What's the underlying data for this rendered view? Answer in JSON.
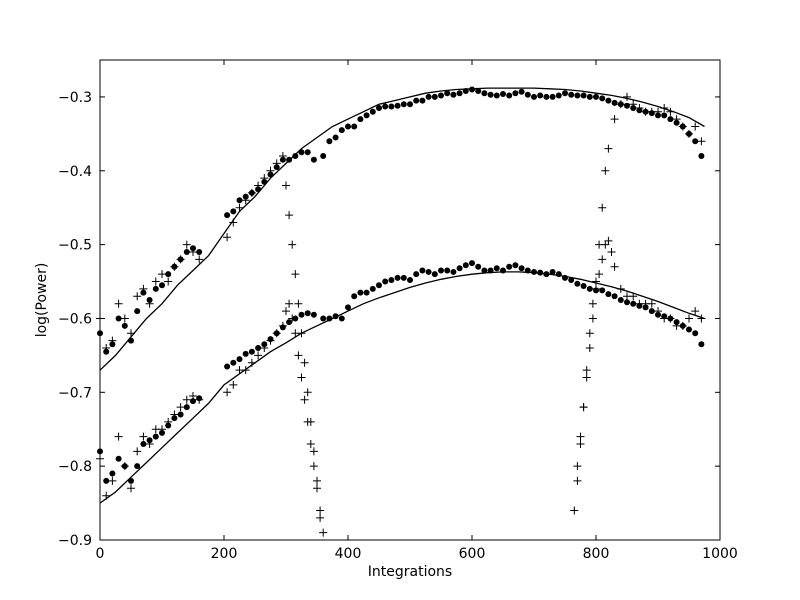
{
  "chart_data": {
    "type": "scatter",
    "title": "",
    "xlabel": "Integrations",
    "ylabel": "log(Power)",
    "xlim": [
      0,
      1000
    ],
    "ylim": [
      -0.9,
      -0.25
    ],
    "xticks": [
      0,
      200,
      400,
      600,
      800,
      1000
    ],
    "xtick_labels": [
      "0",
      "200",
      "400",
      "600",
      "800",
      "1000"
    ],
    "yticks": [
      -0.9,
      -0.8,
      -0.7,
      -0.6,
      -0.5,
      -0.4,
      -0.3
    ],
    "ytick_labels": [
      "−0.9",
      "−0.8",
      "−0.7",
      "−0.6",
      "−0.5",
      "−0.4",
      "−0.3"
    ],
    "grid": false,
    "legend": false,
    "colors": {
      "marks": "#000000",
      "background": "#ffffff"
    },
    "series": [
      {
        "marker": "line",
        "x": [
          0,
          25,
          50,
          75,
          100,
          125,
          150,
          175,
          200,
          225,
          250,
          275,
          300,
          325,
          350,
          375,
          400,
          425,
          450,
          475,
          500,
          525,
          550,
          575,
          600,
          625,
          650,
          675,
          700,
          725,
          750,
          775,
          800,
          825,
          850,
          875,
          900,
          925,
          950,
          975
        ],
        "y": [
          -0.67,
          -0.65,
          -0.625,
          -0.6,
          -0.58,
          -0.555,
          -0.535,
          -0.515,
          -0.485,
          -0.455,
          -0.435,
          -0.41,
          -0.39,
          -0.37,
          -0.355,
          -0.34,
          -0.33,
          -0.32,
          -0.31,
          -0.305,
          -0.3,
          -0.295,
          -0.292,
          -0.29,
          -0.289,
          -0.288,
          -0.288,
          -0.288,
          -0.288,
          -0.289,
          -0.29,
          -0.292,
          -0.295,
          -0.298,
          -0.302,
          -0.307,
          -0.313,
          -0.32,
          -0.328,
          -0.34
        ]
      },
      {
        "marker": "line",
        "x": [
          0,
          25,
          50,
          75,
          100,
          125,
          150,
          175,
          200,
          225,
          250,
          275,
          300,
          325,
          350,
          375,
          400,
          425,
          450,
          475,
          500,
          525,
          550,
          575,
          600,
          625,
          650,
          675,
          700,
          725,
          750,
          775,
          800,
          825,
          850,
          875,
          900,
          925,
          950,
          975
        ],
        "y": [
          -0.85,
          -0.835,
          -0.815,
          -0.795,
          -0.775,
          -0.755,
          -0.735,
          -0.715,
          -0.69,
          -0.675,
          -0.66,
          -0.645,
          -0.633,
          -0.62,
          -0.61,
          -0.6,
          -0.59,
          -0.58,
          -0.572,
          -0.565,
          -0.558,
          -0.552,
          -0.547,
          -0.543,
          -0.54,
          -0.538,
          -0.537,
          -0.537,
          -0.538,
          -0.54,
          -0.543,
          -0.547,
          -0.552,
          -0.557,
          -0.563,
          -0.57,
          -0.577,
          -0.585,
          -0.593,
          -0.6
        ]
      },
      {
        "marker": "dot",
        "x": [
          0,
          10,
          20,
          30,
          40,
          50,
          60,
          70,
          80,
          90,
          100,
          110,
          120,
          130,
          140,
          150,
          160,
          205,
          215,
          225,
          235,
          245,
          255,
          265,
          275,
          285,
          295,
          305,
          315,
          325,
          335,
          345,
          360,
          370,
          380,
          390,
          400,
          410,
          420,
          430,
          440,
          450,
          460,
          470,
          480,
          490,
          500,
          510,
          520,
          530,
          540,
          550,
          560,
          570,
          580,
          590,
          600,
          610,
          620,
          630,
          640,
          650,
          660,
          670,
          680,
          690,
          700,
          710,
          720,
          730,
          740,
          750,
          760,
          770,
          780,
          790,
          800,
          810,
          820,
          830,
          840,
          850,
          860,
          870,
          880,
          890,
          900,
          910,
          920,
          930,
          940,
          950,
          960,
          970
        ],
        "y": [
          -0.62,
          -0.645,
          -0.635,
          -0.6,
          -0.61,
          -0.63,
          -0.59,
          -0.565,
          -0.575,
          -0.56,
          -0.555,
          -0.54,
          -0.53,
          -0.52,
          -0.51,
          -0.505,
          -0.51,
          -0.46,
          -0.455,
          -0.44,
          -0.435,
          -0.43,
          -0.425,
          -0.415,
          -0.405,
          -0.395,
          -0.385,
          -0.385,
          -0.38,
          -0.375,
          -0.375,
          -0.385,
          -0.38,
          -0.36,
          -0.355,
          -0.345,
          -0.34,
          -0.34,
          -0.33,
          -0.325,
          -0.32,
          -0.315,
          -0.313,
          -0.313,
          -0.312,
          -0.31,
          -0.31,
          -0.305,
          -0.305,
          -0.3,
          -0.3,
          -0.298,
          -0.295,
          -0.297,
          -0.295,
          -0.292,
          -0.29,
          -0.292,
          -0.295,
          -0.297,
          -0.298,
          -0.296,
          -0.298,
          -0.295,
          -0.293,
          -0.297,
          -0.3,
          -0.298,
          -0.3,
          -0.3,
          -0.298,
          -0.295,
          -0.297,
          -0.298,
          -0.298,
          -0.3,
          -0.3,
          -0.302,
          -0.305,
          -0.308,
          -0.31,
          -0.312,
          -0.315,
          -0.318,
          -0.32,
          -0.322,
          -0.325,
          -0.325,
          -0.33,
          -0.335,
          -0.34,
          -0.35,
          -0.36,
          -0.38
        ]
      },
      {
        "marker": "dot",
        "x": [
          0,
          10,
          20,
          30,
          40,
          50,
          60,
          70,
          80,
          90,
          100,
          110,
          120,
          130,
          140,
          150,
          160,
          205,
          215,
          225,
          235,
          245,
          255,
          265,
          275,
          285,
          295,
          305,
          315,
          325,
          335,
          345,
          360,
          370,
          380,
          390,
          400,
          410,
          420,
          430,
          440,
          450,
          460,
          470,
          480,
          490,
          500,
          510,
          520,
          530,
          540,
          550,
          560,
          570,
          580,
          590,
          600,
          610,
          620,
          630,
          640,
          650,
          660,
          670,
          680,
          690,
          700,
          710,
          720,
          730,
          740,
          750,
          760,
          770,
          780,
          790,
          800,
          810,
          820,
          830,
          840,
          850,
          860,
          870,
          880,
          890,
          900,
          910,
          920,
          930,
          940,
          950,
          960,
          970
        ],
        "y": [
          -0.78,
          -0.82,
          -0.81,
          -0.79,
          -0.8,
          -0.82,
          -0.8,
          -0.77,
          -0.765,
          -0.76,
          -0.755,
          -0.745,
          -0.735,
          -0.73,
          -0.72,
          -0.712,
          -0.708,
          -0.665,
          -0.66,
          -0.655,
          -0.648,
          -0.645,
          -0.64,
          -0.635,
          -0.628,
          -0.62,
          -0.612,
          -0.605,
          -0.6,
          -0.595,
          -0.593,
          -0.595,
          -0.6,
          -0.6,
          -0.597,
          -0.6,
          -0.585,
          -0.57,
          -0.565,
          -0.565,
          -0.56,
          -0.555,
          -0.55,
          -0.548,
          -0.545,
          -0.545,
          -0.548,
          -0.54,
          -0.535,
          -0.537,
          -0.54,
          -0.535,
          -0.535,
          -0.537,
          -0.532,
          -0.528,
          -0.525,
          -0.53,
          -0.535,
          -0.535,
          -0.532,
          -0.535,
          -0.53,
          -0.528,
          -0.532,
          -0.535,
          -0.537,
          -0.538,
          -0.54,
          -0.537,
          -0.54,
          -0.545,
          -0.548,
          -0.553,
          -0.556,
          -0.56,
          -0.562,
          -0.562,
          -0.567,
          -0.57,
          -0.575,
          -0.578,
          -0.58,
          -0.583,
          -0.585,
          -0.59,
          -0.595,
          -0.597,
          -0.6,
          -0.605,
          -0.61,
          -0.615,
          -0.62,
          -0.635
        ]
      },
      {
        "marker": "plus",
        "x": [
          0,
          10,
          20,
          30,
          40,
          50,
          60,
          70,
          80,
          90,
          100,
          110,
          120,
          130,
          140,
          150,
          160,
          205,
          215,
          225,
          235,
          245,
          255,
          265,
          275,
          285,
          295,
          300,
          305,
          310,
          315,
          320,
          325,
          330,
          335,
          340,
          345,
          350,
          355,
          770,
          775,
          780,
          785,
          790,
          795,
          800,
          805,
          810,
          815,
          820,
          830,
          840,
          850,
          860,
          870,
          880,
          890,
          900,
          910,
          920,
          930,
          940,
          950,
          960,
          970
        ],
        "y": [
          -0.6,
          -0.64,
          -0.63,
          -0.58,
          -0.6,
          -0.62,
          -0.57,
          -0.56,
          -0.58,
          -0.55,
          -0.54,
          -0.55,
          -0.53,
          -0.52,
          -0.5,
          -0.51,
          -0.52,
          -0.49,
          -0.47,
          -0.45,
          -0.44,
          -0.43,
          -0.42,
          -0.41,
          -0.4,
          -0.39,
          -0.38,
          -0.42,
          -0.46,
          -0.5,
          -0.54,
          -0.58,
          -0.62,
          -0.66,
          -0.7,
          -0.74,
          -0.78,
          -0.82,
          -0.87,
          -0.8,
          -0.76,
          -0.72,
          -0.68,
          -0.64,
          -0.6,
          -0.56,
          -0.5,
          -0.45,
          -0.4,
          -0.37,
          -0.33,
          -0.31,
          -0.3,
          -0.31,
          -0.315,
          -0.32,
          -0.32,
          -0.32,
          -0.315,
          -0.32,
          -0.33,
          -0.34,
          -0.35,
          -0.34,
          -0.36
        ]
      },
      {
        "marker": "plus",
        "x": [
          0,
          10,
          20,
          30,
          40,
          50,
          60,
          70,
          80,
          90,
          100,
          110,
          120,
          130,
          140,
          150,
          160,
          205,
          215,
          225,
          235,
          245,
          255,
          265,
          275,
          285,
          295,
          300,
          305,
          310,
          315,
          320,
          325,
          330,
          335,
          340,
          345,
          350,
          355,
          360,
          765,
          770,
          775,
          780,
          785,
          790,
          795,
          800,
          805,
          810,
          815,
          820,
          825,
          830,
          840,
          850,
          860,
          870,
          880,
          890,
          900,
          910,
          920,
          930,
          940,
          950,
          960,
          970
        ],
        "y": [
          -0.79,
          -0.84,
          -0.82,
          -0.76,
          -0.8,
          -0.83,
          -0.78,
          -0.76,
          -0.77,
          -0.75,
          -0.75,
          -0.74,
          -0.73,
          -0.72,
          -0.71,
          -0.705,
          -0.71,
          -0.7,
          -0.69,
          -0.67,
          -0.67,
          -0.66,
          -0.65,
          -0.64,
          -0.63,
          -0.62,
          -0.61,
          -0.59,
          -0.58,
          -0.6,
          -0.62,
          -0.65,
          -0.68,
          -0.71,
          -0.74,
          -0.77,
          -0.8,
          -0.83,
          -0.86,
          -0.89,
          -0.86,
          -0.82,
          -0.77,
          -0.72,
          -0.67,
          -0.62,
          -0.58,
          -0.55,
          -0.54,
          -0.52,
          -0.5,
          -0.495,
          -0.51,
          -0.53,
          -0.56,
          -0.57,
          -0.57,
          -0.58,
          -0.58,
          -0.58,
          -0.59,
          -0.6,
          -0.6,
          -0.61,
          -0.61,
          -0.6,
          -0.59,
          -0.6
        ]
      }
    ]
  }
}
